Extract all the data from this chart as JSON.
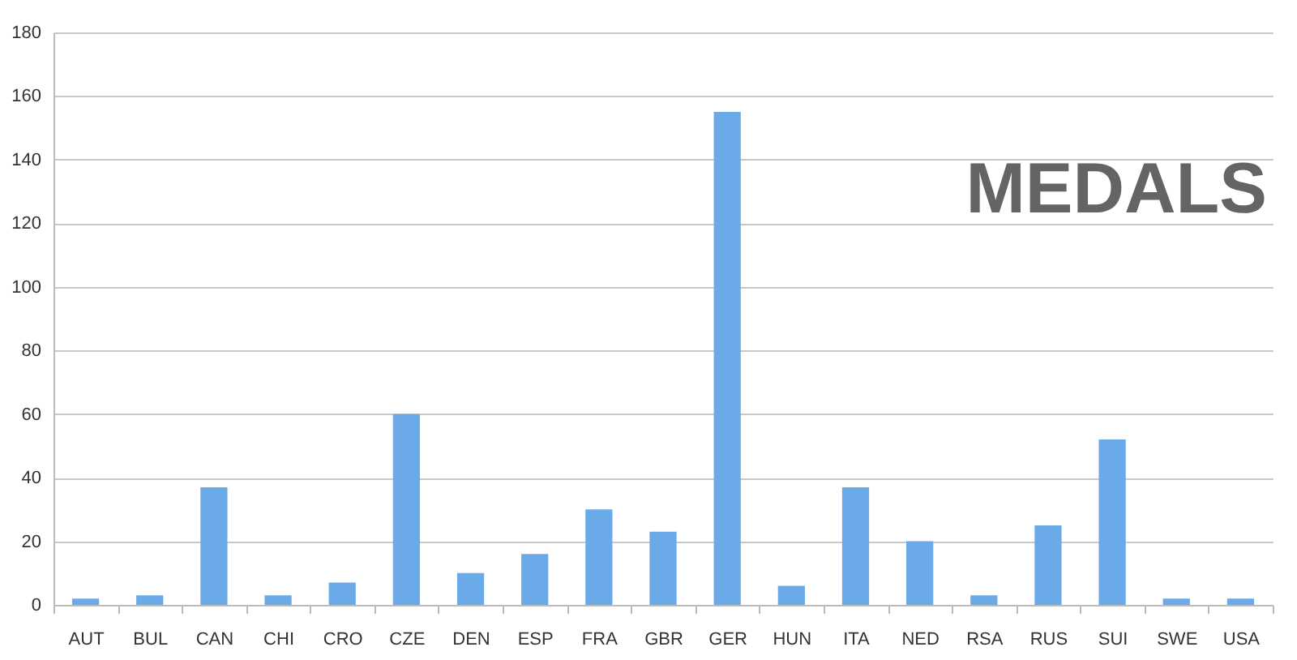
{
  "chart_data": {
    "type": "bar",
    "title": "MEDALS",
    "categories": [
      "AUT",
      "BUL",
      "CAN",
      "CHI",
      "CRO",
      "CZE",
      "DEN",
      "ESP",
      "FRA",
      "GBR",
      "GER",
      "HUN",
      "ITA",
      "NED",
      "RSA",
      "RUS",
      "SUI",
      "SWE",
      "USA"
    ],
    "values": [
      2,
      3,
      37,
      3,
      7,
      60,
      10,
      16,
      30,
      23,
      155,
      6,
      37,
      20,
      3,
      25,
      52,
      2,
      2
    ],
    "color": "#6aaae8",
    "ylim": [
      0,
      180
    ],
    "yticks": [
      0,
      20,
      40,
      60,
      80,
      100,
      120,
      140,
      160,
      180
    ],
    "grid": "y"
  }
}
